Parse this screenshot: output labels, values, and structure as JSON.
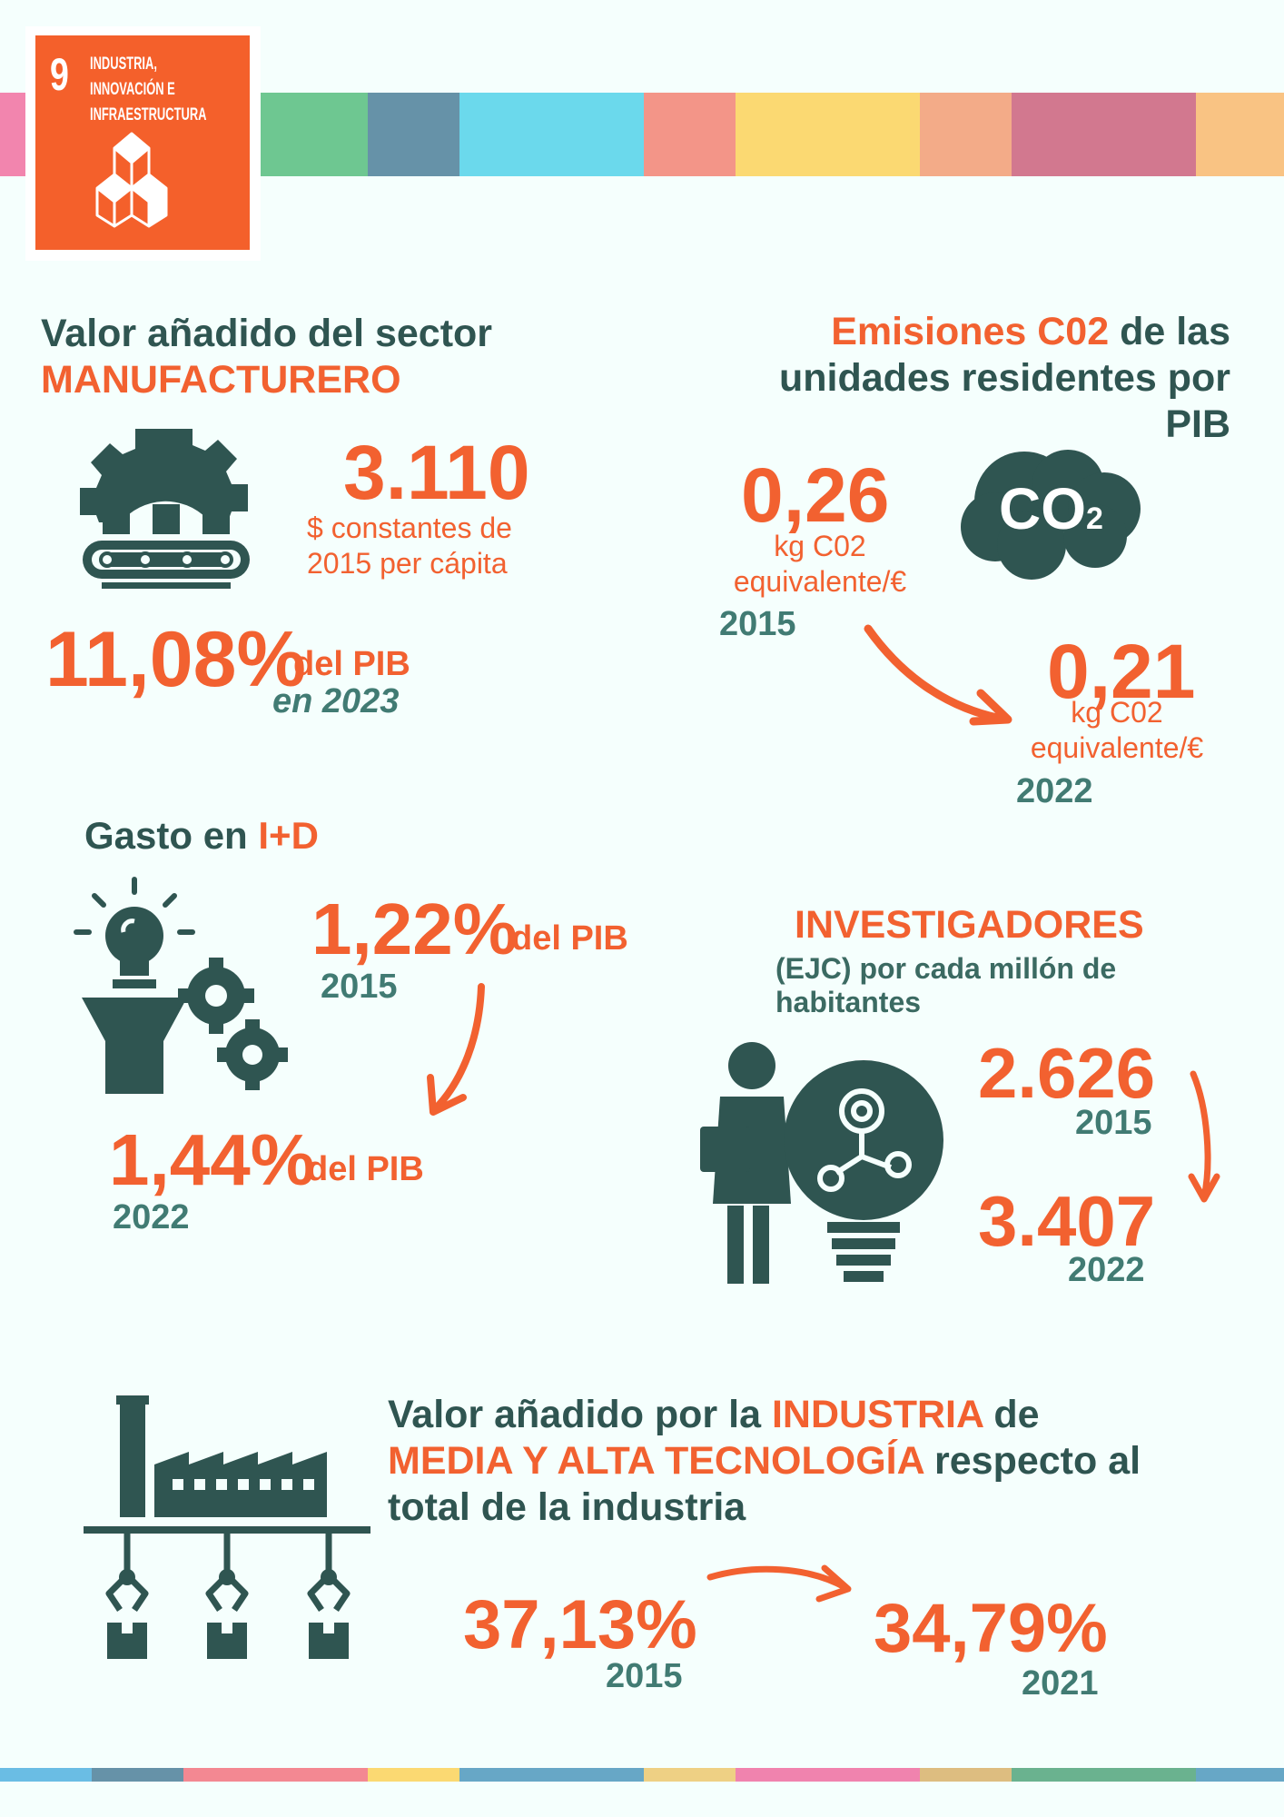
{
  "colors": {
    "accent": "#F26130",
    "dark": "#2F5551",
    "teal": "#417B73",
    "background": "#F5FFFD"
  },
  "badge": {
    "number": "9",
    "lines": [
      "INDUSTRIA,",
      "INNOVACIÓN E",
      "INFRAESTRUCTURA"
    ],
    "icon": "stacked-cubes-icon"
  },
  "top_bar_colors": [
    "#F285AE",
    "#6EC791",
    "#6692A8",
    "#6BD9EC",
    "#F39588",
    "#FBD972",
    "#F3AB88",
    "#D2788F",
    "#F9C383"
  ],
  "bottom_bar_colors": [
    "#6ABDE4",
    "#6692A8",
    "#F38892",
    "#FBD972",
    "#67A7C6",
    "#EED084",
    "#F083AE",
    "#DDBD80",
    "#6AB28F",
    "#67A7C6"
  ],
  "manufacturing": {
    "title_line1": "Valor añadido del sector",
    "title_line2": "MANUFACTURERO",
    "value": "3.110",
    "unit_line1": "$ constantes de",
    "unit_line2": "2015 per cápita",
    "share": "11,08%",
    "share_suffix": "del PIB",
    "share_year": "en 2023",
    "icon": "conveyor-gear-icon"
  },
  "emissions": {
    "title_highlight": "Emisiones C02",
    "title_rest1": "de las",
    "title_line2": "unidades residentes por",
    "title_line3": "PIB",
    "cloud_label": "CO",
    "cloud_sub": "2",
    "v2015": "0,26",
    "unit_a": "kg C02",
    "unit_b": "equivalente/€",
    "y2015": "2015",
    "v2022": "0,21",
    "y2022": "2022"
  },
  "rd": {
    "title": "Gasto en",
    "title_highlight": "I+D",
    "v2015": "1,22%",
    "suffix": "del PIB",
    "y2015": "2015",
    "v2022": "1,44%",
    "y2022": "2022",
    "icon": "lightbulb-gears-icon"
  },
  "researchers": {
    "title": "INVESTIGADORES",
    "sub_line1": "(EJC) por cada millón de",
    "sub_line2": "habitantes",
    "v2015": "2.626",
    "y2015": "2015",
    "v2022": "3.407",
    "y2022": "2022",
    "icon": "scientist-lightbulb-icon"
  },
  "hightech": {
    "t1a": "Valor añadido por la",
    "t1b": "INDUSTRIA",
    "t1c": "de",
    "t2a": "MEDIA Y ALTA TECNOLOGÍA",
    "t2b": "respecto al",
    "t3": "total de la industria",
    "v2015": "37,13%",
    "y2015": "2015",
    "v2021": "34,79%",
    "y2021": "2021",
    "icon": "factory-robot-arms-icon"
  }
}
